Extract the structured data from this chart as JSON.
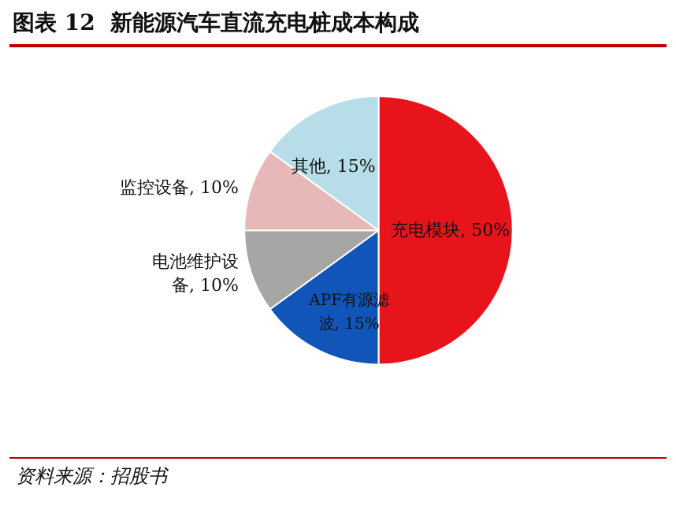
{
  "chart_data": {
    "type": "pie",
    "title": "图表 12  新能源汽车直流充电桩成本构成",
    "categories": [
      "充电模块",
      "APF有源滤波",
      "电池维护设备",
      "监控设备",
      "其他"
    ],
    "values": [
      50,
      15,
      10,
      10,
      15
    ],
    "value_labels": [
      "50%",
      "15%",
      "10%",
      "10%",
      "15%"
    ],
    "colors": [
      "#e8141c",
      "#1155b8",
      "#a6a6a6",
      "#e6b9b8",
      "#b7dde8"
    ],
    "annotations": [
      "资料来源：招股书"
    ]
  }
}
